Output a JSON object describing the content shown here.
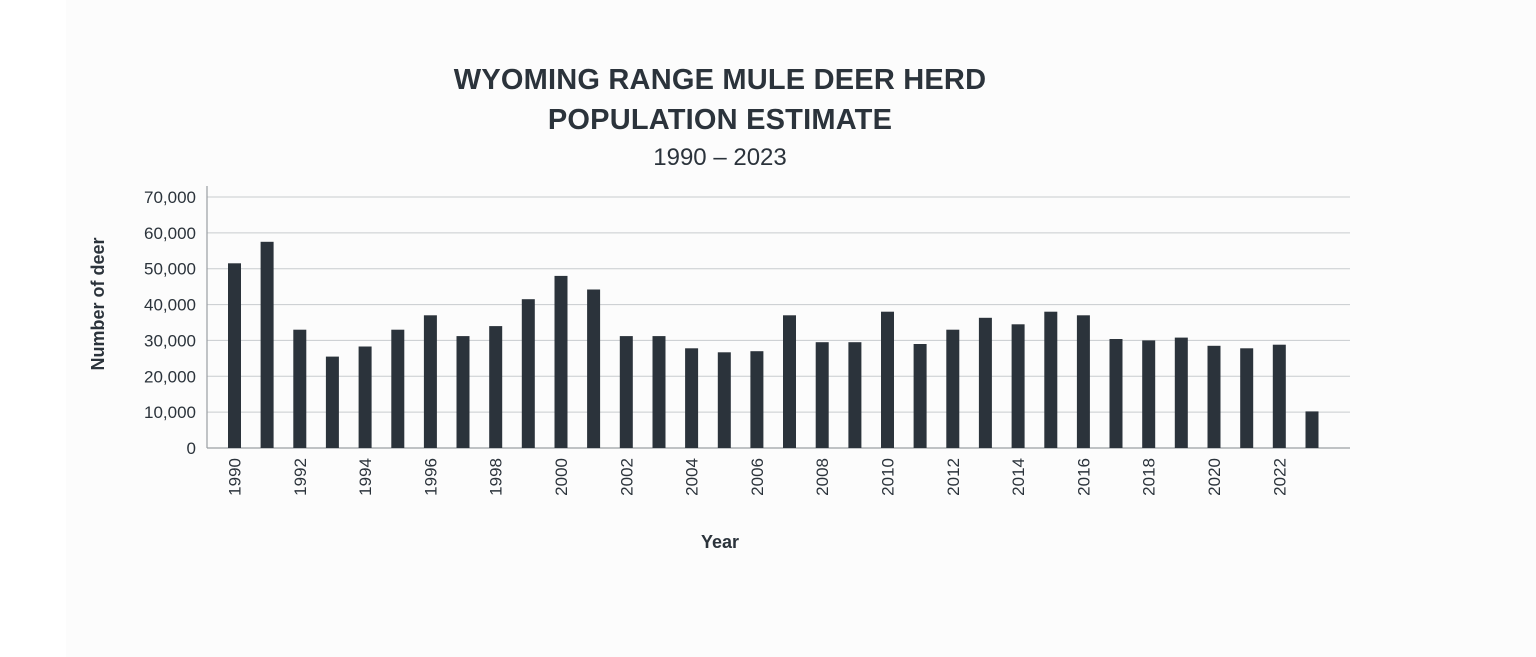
{
  "chart_data": {
    "type": "bar",
    "title": "WYOMING RANGE MULE DEER HERD",
    "title_line2": "POPULATION ESTIMATE",
    "subtitle": "1990 – 2023",
    "xlabel": "Year",
    "ylabel": "Number of deer",
    "ylim": [
      0,
      70000
    ],
    "y_ticks": [
      0,
      10000,
      20000,
      30000,
      40000,
      50000,
      60000,
      70000
    ],
    "y_tick_labels": [
      "0",
      "10,000",
      "20,000",
      "30,000",
      "40,000",
      "50,000",
      "60,000",
      "70,000"
    ],
    "x_tick_labels": [
      "1990",
      "1992",
      "1994",
      "1996",
      "1998",
      "2000",
      "2002",
      "2004",
      "2006",
      "2008",
      "2010",
      "2012",
      "2014",
      "2016",
      "2018",
      "2020",
      "2022"
    ],
    "categories": [
      "1990",
      "1991",
      "1992",
      "1993",
      "1994",
      "1995",
      "1996",
      "1997",
      "1998",
      "1999",
      "2000",
      "2001",
      "2002",
      "2003",
      "2004",
      "2005",
      "2006",
      "2007",
      "2008",
      "2009",
      "2010",
      "2011",
      "2012",
      "2013",
      "2014",
      "2015",
      "2016",
      "2017",
      "2018",
      "2019",
      "2020",
      "2021",
      "2022",
      "2023"
    ],
    "values": [
      51500,
      57500,
      33000,
      25500,
      28300,
      33000,
      37000,
      31200,
      34000,
      41500,
      48000,
      44200,
      31200,
      31200,
      27800,
      26700,
      27000,
      37000,
      29500,
      29500,
      38000,
      29000,
      33000,
      36300,
      34500,
      38000,
      37000,
      30400,
      30000,
      30800,
      28500,
      27800,
      28800,
      10200
    ],
    "grid": true,
    "bar_color": "#2b333b",
    "grid_color": "#c8cbce",
    "axis_color": "#9a9ea3",
    "text_color": "#2b333b"
  }
}
